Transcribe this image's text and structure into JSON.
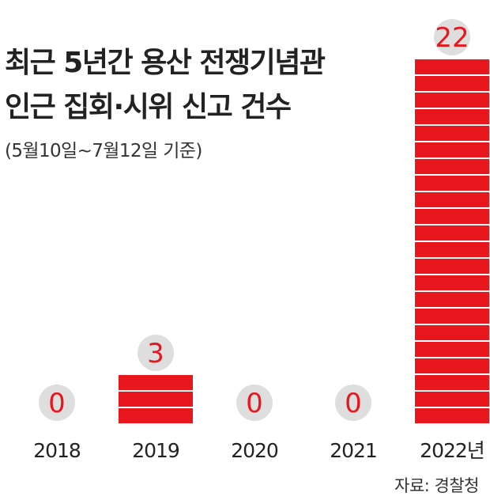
{
  "title_lines": [
    "최근 5년간 용산 전쟁기념관",
    "인근 집회·시위 신고 건수"
  ],
  "subtitle": "(5월10일~7월12일 기준)",
  "source": "자료: 경찰청",
  "colors": {
    "bar": "#e8171e",
    "stripe": "#ffffff",
    "badge": "#dedede",
    "badge_text": "#e8171e",
    "tick_text": "#222222"
  },
  "chart_data": {
    "type": "bar",
    "title": "최근 5년간 용산 전쟁기념관 인근 집회·시위 신고 건수",
    "subtitle": "(5월10일~7월12일 기준)",
    "categories": [
      "2018",
      "2019",
      "2020",
      "2021",
      "2022년"
    ],
    "values": [
      0,
      3,
      0,
      0,
      22
    ],
    "data_labels": [
      "0",
      "3",
      "0",
      "0",
      "22"
    ],
    "ylim": [
      0,
      22
    ],
    "grid": false,
    "legend": "none",
    "bar_style": "stacked-unit-blocks"
  }
}
